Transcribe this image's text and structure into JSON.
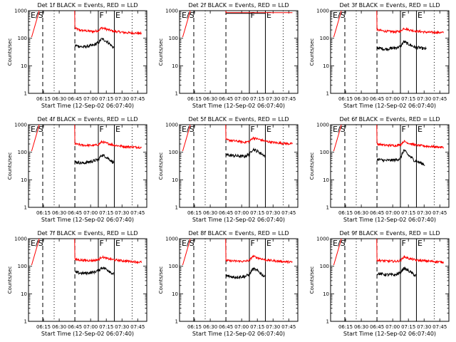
{
  "chart_data": {
    "type": "line",
    "xlabel": "Start Time (12-Sep-02 06:07:40)",
    "ylabel": "Counts/sec",
    "x_ticks": [
      "06:15",
      "06:30",
      "06:45",
      "07:00",
      "07:15",
      "07:30",
      "07:45"
    ],
    "y_ticks": [
      "1",
      "10",
      "100",
      "1000"
    ],
    "ylim": [
      1,
      1000
    ],
    "yscale": "log",
    "xlim_minutes_from_start": [
      -7,
      106
    ],
    "series_colors": {
      "events": "#000000",
      "lld": "#ff0000"
    },
    "markers": {
      "es": "E/S",
      "f": "F",
      "e": "E"
    },
    "panels": [
      {
        "title": "Det 1f BLACK = Events, RED = LLD",
        "lines": {
          "dashed": [
            6.6,
            37.3
          ],
          "dotted": [
            17.5,
            92
          ],
          "solid": [
            59.7,
            75
          ]
        },
        "lld": {
          "rise_start": [
            -4,
            110
          ],
          "rise_end": [
            3,
            900
          ],
          "drop": [
            37.3,
            290
          ],
          "levels": [
            [
              37.5,
              230
            ],
            [
              42,
              195
            ],
            [
              55,
              175
            ],
            [
              60,
              190
            ],
            [
              63,
              240
            ],
            [
              68,
              210
            ],
            [
              74,
              180
            ],
            [
              85,
              160
            ],
            [
              101,
              150
            ]
          ]
        },
        "events": {
          "levels": [
            [
              37.5,
              55
            ],
            [
              45,
              48
            ],
            [
              55,
              55
            ],
            [
              60,
              70
            ],
            [
              63,
              95
            ],
            [
              67,
              80
            ],
            [
              73,
              50
            ],
            [
              75,
              45
            ]
          ]
        }
      },
      {
        "title": "Det 2f BLACK = Events, RED = LLD",
        "lines": {
          "dashed": [
            6.6,
            37.3
          ],
          "dotted": [
            17.5,
            92
          ],
          "solid": [
            59.7,
            75
          ]
        },
        "lld": {
          "rise_start": [
            -4,
            110
          ],
          "rise_end": [
            3,
            900
          ],
          "drop": [
            37.3,
            900
          ],
          "levels": [
            [
              37.5,
              850
            ],
            [
              101,
              850
            ]
          ]
        },
        "events": {
          "levels": [
            [
              37.5,
              800
            ],
            [
              75,
              800
            ]
          ]
        }
      },
      {
        "title": "Det 3f BLACK = Events, RED = LLD",
        "lines": {
          "dashed": [
            6.6,
            37.3
          ],
          "dotted": [
            17.5,
            92
          ],
          "solid": [
            59.7,
            75
          ]
        },
        "lld": {
          "rise_start": [
            -4,
            110
          ],
          "rise_end": [
            3,
            900
          ],
          "drop": [
            37.3,
            250
          ],
          "levels": [
            [
              37.5,
              200
            ],
            [
              45,
              180
            ],
            [
              55,
              170
            ],
            [
              60,
              180
            ],
            [
              63,
              230
            ],
            [
              68,
              200
            ],
            [
              75,
              180
            ],
            [
              85,
              165
            ],
            [
              101,
              160
            ]
          ]
        },
        "events": {
          "levels": [
            [
              37.5,
              45
            ],
            [
              45,
              40
            ],
            [
              55,
              45
            ],
            [
              60,
              50
            ],
            [
              63,
              75
            ],
            [
              67,
              62
            ],
            [
              73,
              48
            ],
            [
              85,
              40
            ]
          ]
        }
      },
      {
        "title": "Det 4f BLACK = Events, RED = LLD",
        "lines": {
          "dashed": [
            6.6,
            37.3
          ],
          "dotted": [
            17.5,
            92
          ],
          "solid": [
            59.7,
            75
          ]
        },
        "lld": {
          "rise_start": [
            -4,
            110
          ],
          "rise_end": [
            3,
            900
          ],
          "drop": [
            37.3,
            250
          ],
          "levels": [
            [
              37.5,
              200
            ],
            [
              45,
              180
            ],
            [
              55,
              175
            ],
            [
              60,
              190
            ],
            [
              63,
              240
            ],
            [
              68,
              210
            ],
            [
              75,
              180
            ],
            [
              85,
              160
            ],
            [
              101,
              150
            ]
          ]
        },
        "events": {
          "levels": [
            [
              37.5,
              45
            ],
            [
              45,
              40
            ],
            [
              55,
              48
            ],
            [
              60,
              55
            ],
            [
              63,
              80
            ],
            [
              67,
              68
            ],
            [
              73,
              45
            ],
            [
              75,
              42
            ]
          ]
        }
      },
      {
        "title": "Det 5f BLACK = Events, RED = LLD",
        "lines": {
          "dashed": [
            6.6,
            37.3
          ],
          "dotted": [
            17.5,
            92
          ],
          "solid": [
            59.7,
            75
          ]
        },
        "lld": {
          "rise_start": [
            -4,
            110
          ],
          "rise_end": [
            3,
            900
          ],
          "drop": [
            37.3,
            300
          ],
          "levels": [
            [
              37.5,
              280
            ],
            [
              45,
              260
            ],
            [
              55,
              230
            ],
            [
              60,
              250
            ],
            [
              63,
              330
            ],
            [
              68,
              300
            ],
            [
              75,
              250
            ],
            [
              85,
              220
            ],
            [
              101,
              200
            ]
          ]
        },
        "events": {
          "levels": [
            [
              37.5,
              80
            ],
            [
              45,
              75
            ],
            [
              55,
              70
            ],
            [
              60,
              85
            ],
            [
              63,
              130
            ],
            [
              67,
              110
            ],
            [
              73,
              80
            ],
            [
              75,
              70
            ]
          ]
        }
      },
      {
        "title": "Det 6f BLACK = Events, RED = LLD",
        "lines": {
          "dashed": [
            6.6,
            37.3
          ],
          "dotted": [
            17.5,
            92
          ],
          "solid": [
            59.7,
            75
          ]
        },
        "lld": {
          "rise_start": [
            -4,
            110
          ],
          "rise_end": [
            3,
            900
          ],
          "drop": [
            37.3,
            250
          ],
          "levels": [
            [
              37.5,
              200
            ],
            [
              45,
              180
            ],
            [
              55,
              175
            ],
            [
              60,
              190
            ],
            [
              63,
              250
            ],
            [
              68,
              210
            ],
            [
              75,
              180
            ],
            [
              85,
              165
            ],
            [
              101,
              150
            ]
          ]
        },
        "events": {
          "levels": [
            [
              37.5,
              55
            ],
            [
              45,
              50
            ],
            [
              55,
              52
            ],
            [
              60,
              60
            ],
            [
              63,
              120
            ],
            [
              67,
              80
            ],
            [
              73,
              50
            ],
            [
              83,
              35
            ]
          ]
        }
      },
      {
        "title": "Det 7f BLACK = Events, RED = LLD",
        "lines": {
          "dashed": [
            6.6,
            37.3
          ],
          "dotted": [
            17.5,
            92
          ],
          "solid": [
            59.7,
            75
          ]
        },
        "lld": {
          "rise_start": [
            -4,
            110
          ],
          "rise_end": [
            3,
            900
          ],
          "drop": [
            37.3,
            200
          ],
          "levels": [
            [
              37.5,
              175
            ],
            [
              45,
              165
            ],
            [
              55,
              160
            ],
            [
              60,
              175
            ],
            [
              63,
              220
            ],
            [
              68,
              190
            ],
            [
              75,
              170
            ],
            [
              85,
              155
            ],
            [
              101,
              140
            ]
          ]
        },
        "events": {
          "levels": [
            [
              37.5,
              60
            ],
            [
              45,
              55
            ],
            [
              55,
              60
            ],
            [
              60,
              70
            ],
            [
              63,
              90
            ],
            [
              67,
              80
            ],
            [
              73,
              55
            ],
            [
              75,
              50
            ]
          ]
        }
      },
      {
        "title": "Det 8f BLACK = Events, RED = LLD",
        "lines": {
          "dashed": [
            6.6,
            37.3
          ],
          "dotted": [
            17.5,
            92
          ],
          "solid": [
            59.7,
            75
          ]
        },
        "lld": {
          "rise_start": [
            -4,
            110
          ],
          "rise_end": [
            3,
            900
          ],
          "drop": [
            37.3,
            180
          ],
          "levels": [
            [
              37.5,
              160
            ],
            [
              45,
              155
            ],
            [
              55,
              150
            ],
            [
              60,
              165
            ],
            [
              63,
              230
            ],
            [
              68,
              200
            ],
            [
              75,
              170
            ],
            [
              85,
              155
            ],
            [
              101,
              140
            ]
          ]
        },
        "events": {
          "levels": [
            [
              37.5,
              45
            ],
            [
              45,
              40
            ],
            [
              55,
              42
            ],
            [
              60,
              50
            ],
            [
              63,
              80
            ],
            [
              67,
              70
            ],
            [
              73,
              45
            ],
            [
              75,
              42
            ]
          ]
        }
      },
      {
        "title": "Det 9f BLACK = Events, RED = LLD",
        "lines": {
          "dashed": [
            6.6,
            37.3
          ],
          "dotted": [
            17.5,
            92
          ],
          "solid": [
            59.7,
            75
          ]
        },
        "lld": {
          "rise_start": [
            -4,
            110
          ],
          "rise_end": [
            3,
            900
          ],
          "drop": [
            37.3,
            200
          ],
          "levels": [
            [
              37.5,
              165
            ],
            [
              45,
              155
            ],
            [
              55,
              150
            ],
            [
              60,
              160
            ],
            [
              63,
              220
            ],
            [
              68,
              190
            ],
            [
              75,
              165
            ],
            [
              85,
              155
            ],
            [
              101,
              140
            ]
          ]
        },
        "events": {
          "levels": [
            [
              37.5,
              55
            ],
            [
              45,
              50
            ],
            [
              55,
              48
            ],
            [
              60,
              60
            ],
            [
              63,
              85
            ],
            [
              67,
              70
            ],
            [
              73,
              48
            ],
            [
              75,
              45
            ]
          ]
        }
      }
    ]
  }
}
